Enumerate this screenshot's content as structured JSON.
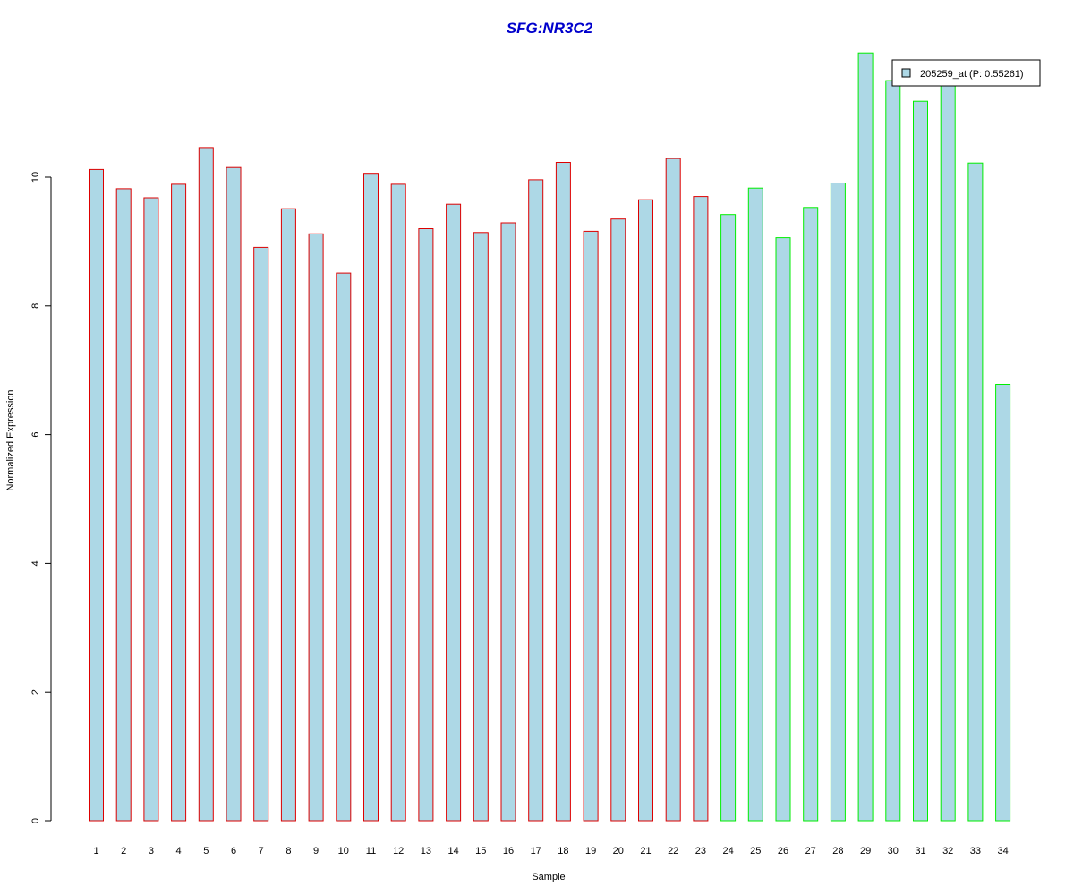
{
  "colors": {
    "title": "#0000cc",
    "bar_fill": "#add8e6",
    "group1_border": "#dd0000",
    "group2_border": "#00ee00",
    "axis": "#000000"
  },
  "chart_data": {
    "type": "bar",
    "title": "SFG:NR3C2",
    "xlabel": "Sample",
    "ylabel": "Normalized Expression",
    "ylim": [
      0,
      12.9
    ],
    "yticks": [
      0,
      2,
      4,
      6,
      8,
      10
    ],
    "categories": [
      "1",
      "2",
      "3",
      "4",
      "5",
      "6",
      "7",
      "8",
      "9",
      "10",
      "11",
      "12",
      "13",
      "14",
      "15",
      "16",
      "17",
      "18",
      "19",
      "20",
      "21",
      "22",
      "23",
      "24",
      "25",
      "26",
      "27",
      "28",
      "29",
      "30",
      "31",
      "32",
      "33",
      "34"
    ],
    "series": [
      {
        "name": "205259_at (P: 0.55261)",
        "values": [
          10.12,
          9.82,
          9.68,
          9.89,
          10.46,
          10.15,
          8.91,
          9.51,
          9.12,
          8.51,
          10.06,
          9.89,
          9.2,
          9.58,
          9.14,
          9.29,
          9.96,
          10.23,
          9.16,
          9.35,
          9.65,
          10.29,
          9.7,
          9.42,
          9.83,
          9.06,
          9.53,
          9.91,
          11.93,
          11.5,
          11.18,
          11.5,
          10.22,
          6.78
        ]
      }
    ],
    "group": [
      1,
      1,
      1,
      1,
      1,
      1,
      1,
      1,
      1,
      1,
      1,
      1,
      1,
      1,
      1,
      1,
      1,
      1,
      1,
      1,
      1,
      1,
      1,
      2,
      2,
      2,
      2,
      2,
      2,
      2,
      2,
      2,
      2,
      2
    ],
    "legend_position": "top-right",
    "grid": false
  }
}
